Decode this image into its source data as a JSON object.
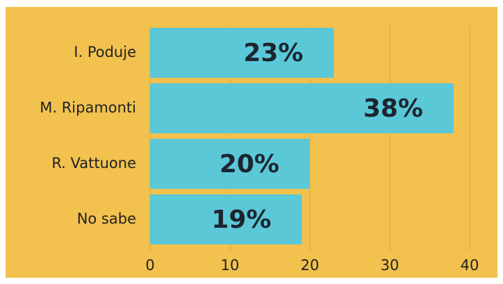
{
  "chart_data": {
    "type": "bar",
    "orientation": "horizontal",
    "categories": [
      "I. Poduje",
      "M. Ripamonti",
      "R. Vattuone",
      "No sabe"
    ],
    "values": [
      23,
      38,
      20,
      19
    ],
    "value_labels": [
      "23%",
      "38%",
      "20%",
      "19%"
    ],
    "color": "#5bc8d8",
    "xlim": [
      0,
      40
    ],
    "xticks": [
      0,
      10,
      20,
      30,
      40
    ],
    "grid": true
  }
}
